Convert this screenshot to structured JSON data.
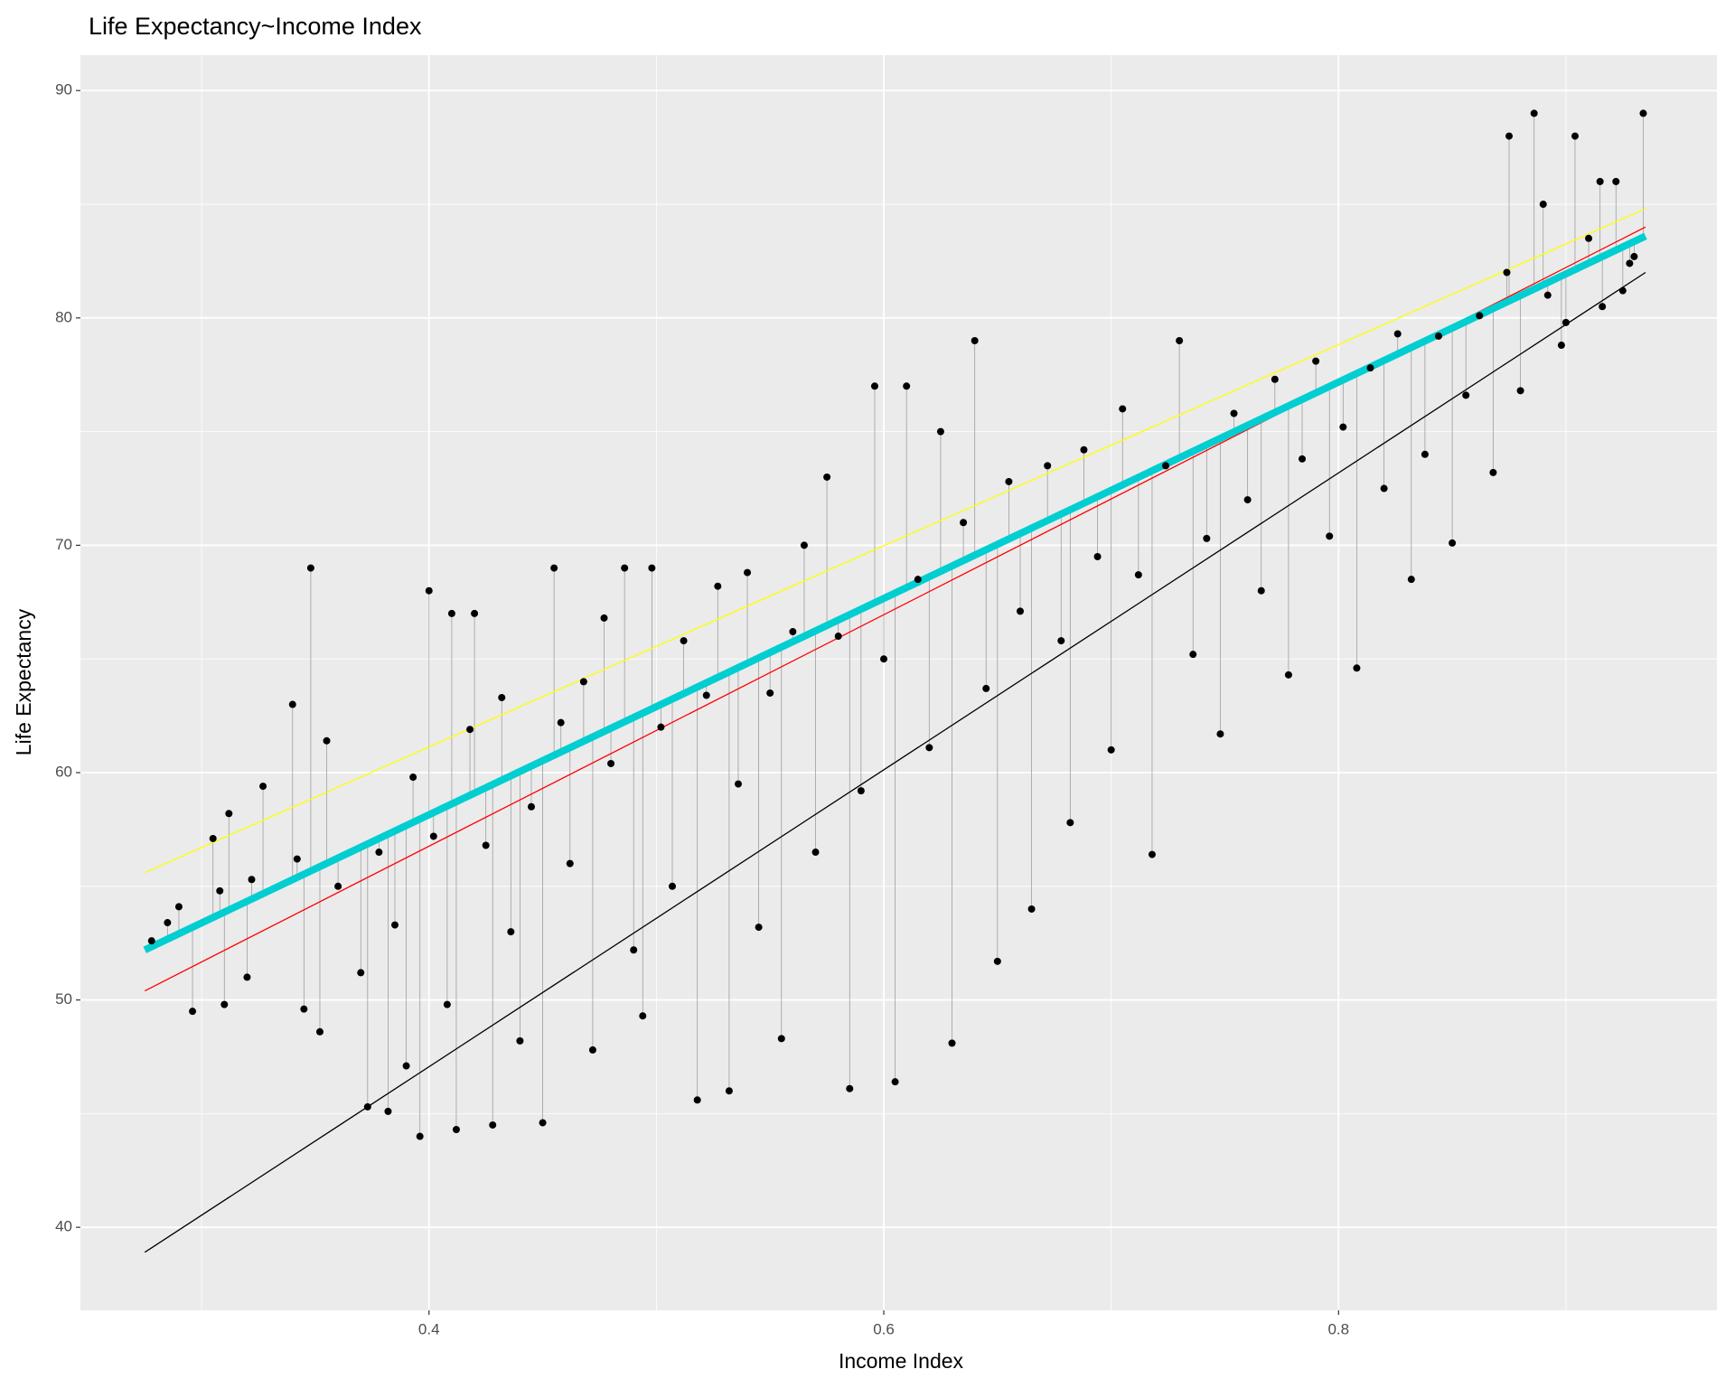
{
  "chart_data": {
    "type": "scatter",
    "title": "Life Expectancy~Income Index",
    "x_label": "Income Index",
    "y_label": "Life Expectancy",
    "xlim": [
      0.2467,
      0.9664
    ],
    "ylim": [
      36.35,
      91.56
    ],
    "xticks": [
      0.4,
      0.6,
      0.8
    ],
    "yticks": [
      40,
      50,
      60,
      70,
      80,
      90
    ],
    "xminor": [
      0.3,
      0.5,
      0.7,
      0.9
    ],
    "yminor": [
      45,
      55,
      65,
      75,
      85
    ],
    "grid": true,
    "point_color": "#000000",
    "segment_color": "#9e9e9e",
    "x": [
      0.278,
      0.285,
      0.29,
      0.296,
      0.305,
      0.308,
      0.31,
      0.312,
      0.32,
      0.322,
      0.327,
      0.34,
      0.342,
      0.345,
      0.348,
      0.352,
      0.355,
      0.36,
      0.37,
      0.373,
      0.378,
      0.382,
      0.385,
      0.39,
      0.393,
      0.396,
      0.4,
      0.402,
      0.408,
      0.41,
      0.412,
      0.418,
      0.42,
      0.425,
      0.428,
      0.432,
      0.436,
      0.44,
      0.445,
      0.45,
      0.455,
      0.458,
      0.462,
      0.468,
      0.472,
      0.477,
      0.48,
      0.486,
      0.49,
      0.494,
      0.498,
      0.502,
      0.507,
      0.512,
      0.518,
      0.522,
      0.527,
      0.532,
      0.536,
      0.54,
      0.545,
      0.55,
      0.555,
      0.56,
      0.565,
      0.57,
      0.575,
      0.58,
      0.585,
      0.59,
      0.596,
      0.6,
      0.605,
      0.61,
      0.615,
      0.62,
      0.625,
      0.63,
      0.635,
      0.64,
      0.645,
      0.65,
      0.655,
      0.66,
      0.665,
      0.672,
      0.678,
      0.682,
      0.688,
      0.694,
      0.7,
      0.705,
      0.712,
      0.718,
      0.724,
      0.73,
      0.736,
      0.742,
      0.748,
      0.754,
      0.76,
      0.766,
      0.772,
      0.778,
      0.784,
      0.79,
      0.796,
      0.802,
      0.808,
      0.814,
      0.82,
      0.826,
      0.832,
      0.838,
      0.844,
      0.85,
      0.856,
      0.862,
      0.868,
      0.874,
      0.875,
      0.88,
      0.886,
      0.89,
      0.892,
      0.898,
      0.9,
      0.904,
      0.91,
      0.915,
      0.916,
      0.922,
      0.925,
      0.928,
      0.93,
      0.934
    ],
    "values": [
      52.6,
      53.4,
      54.1,
      49.5,
      57.1,
      54.8,
      49.8,
      58.2,
      51.0,
      55.3,
      59.4,
      63.0,
      56.2,
      49.6,
      69.0,
      48.6,
      61.4,
      55.0,
      51.2,
      45.3,
      56.5,
      45.1,
      53.3,
      47.1,
      59.8,
      44.0,
      68.0,
      57.2,
      49.8,
      67.0,
      44.3,
      61.9,
      67.0,
      56.8,
      44.5,
      63.3,
      53.0,
      48.2,
      58.5,
      44.6,
      69.0,
      62.2,
      56.0,
      64.0,
      47.8,
      66.8,
      60.4,
      69.0,
      52.2,
      49.3,
      69.0,
      62.0,
      55.0,
      65.8,
      45.6,
      63.4,
      68.2,
      46.0,
      59.5,
      68.8,
      53.2,
      63.5,
      48.3,
      66.2,
      70.0,
      56.5,
      73.0,
      66.0,
      46.1,
      59.2,
      77.0,
      65.0,
      46.4,
      77.0,
      68.5,
      61.1,
      75.0,
      48.1,
      71.0,
      79.0,
      63.7,
      51.7,
      72.8,
      67.1,
      54.0,
      73.5,
      65.8,
      57.8,
      74.2,
      69.5,
      61.0,
      76.0,
      68.7,
      56.4,
      73.5,
      79.0,
      65.2,
      70.3,
      61.7,
      75.8,
      72.0,
      68.0,
      77.3,
      64.3,
      73.8,
      78.1,
      70.4,
      75.2,
      64.6,
      77.8,
      72.5,
      79.3,
      68.5,
      74.0,
      79.2,
      70.1,
      76.6,
      80.1,
      73.2,
      82.0,
      88.0,
      76.8,
      89.0,
      85.0,
      81.0,
      78.8,
      79.8,
      88.0,
      83.5,
      86.0,
      80.5,
      86.0,
      81.2,
      82.4,
      82.7,
      89.0
    ],
    "lines": [
      {
        "color": "#000000",
        "x": [
          0.275,
          0.935
        ],
        "values": [
          38.9,
          82.0
        ]
      },
      {
        "color": "#ff0000",
        "x": [
          0.275,
          0.935
        ],
        "values": [
          50.4,
          84.0
        ]
      },
      {
        "color": "#ffff00",
        "x": [
          0.275,
          0.935
        ],
        "values": [
          55.6,
          84.8
        ]
      },
      {
        "color": "#00ced1",
        "x": [
          0.275,
          0.935
        ],
        "values": [
          52.2,
          83.6
        ]
      }
    ]
  }
}
